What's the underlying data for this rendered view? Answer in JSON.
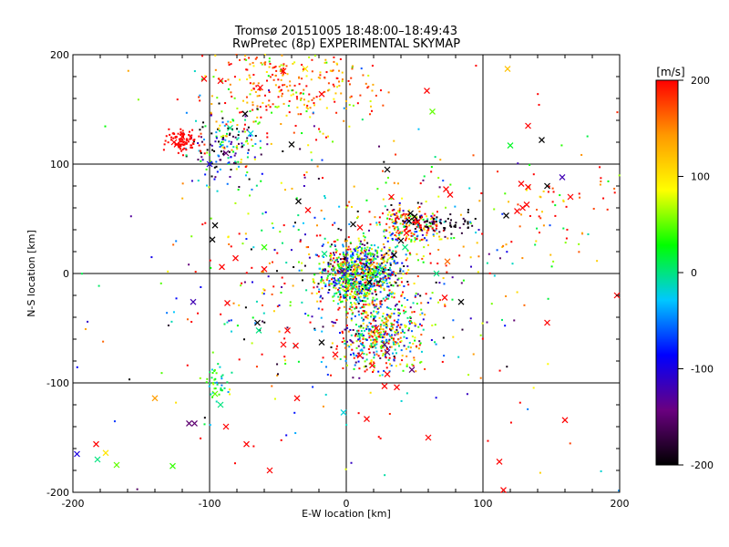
{
  "chart_data": {
    "type": "scatter",
    "title_lines": [
      "Tromsø 20151005 18:48:00–18:49:43",
      "RwPretec (8p) EXPERIMENTAL SKYMAP"
    ],
    "xlabel": "E-W location [km]",
    "ylabel": "N-S location [km]",
    "xlim": [
      -200,
      200
    ],
    "ylim": [
      -200,
      200
    ],
    "xticks": [
      -200,
      -100,
      0,
      100,
      200
    ],
    "yticks": [
      -200,
      -100,
      0,
      100,
      200
    ],
    "grid": true,
    "colorbar": {
      "label": "[m/s]",
      "range": [
        -200,
        200
      ],
      "ticks": [
        200,
        100,
        0,
        -100,
        -200
      ],
      "colors": [
        "#000000",
        "#6a0080",
        "#0000ff",
        "#00c8ff",
        "#00ff00",
        "#ffff00",
        "#ff9900",
        "#ff0000"
      ]
    },
    "marker_legend": {
      "point": "dot",
      "cross": "x"
    },
    "cross_points": [
      {
        "x": -85,
        "y": 133,
        "v": 0
      },
      {
        "x": -100,
        "y": 100,
        "v": -100
      },
      {
        "x": -88,
        "y": 110,
        "v": -150
      },
      {
        "x": -74,
        "y": 146,
        "v": -200
      },
      {
        "x": -70,
        "y": 128,
        "v": -20
      },
      {
        "x": -40,
        "y": 118,
        "v": -200
      },
      {
        "x": -63,
        "y": 170,
        "v": 200
      },
      {
        "x": -46,
        "y": 185,
        "v": 200
      },
      {
        "x": -92,
        "y": 176,
        "v": 200
      },
      {
        "x": -104,
        "y": 178,
        "v": 200
      },
      {
        "x": -30,
        "y": 187,
        "v": 100
      },
      {
        "x": -18,
        "y": 164,
        "v": 200
      },
      {
        "x": 59,
        "y": 167,
        "v": 200
      },
      {
        "x": 63,
        "y": 148,
        "v": 50
      },
      {
        "x": 133,
        "y": 135,
        "v": 200
      },
      {
        "x": 120,
        "y": 117,
        "v": 20
      },
      {
        "x": 143,
        "y": 122,
        "v": -200
      },
      {
        "x": 158,
        "y": 88,
        "v": -120
      },
      {
        "x": 128,
        "y": 82,
        "v": 200
      },
      {
        "x": 133,
        "y": 79,
        "v": 200
      },
      {
        "x": 147,
        "y": 80,
        "v": -200
      },
      {
        "x": 164,
        "y": 70,
        "v": 200
      },
      {
        "x": 117,
        "y": 53,
        "v": -200
      },
      {
        "x": 125,
        "y": 57,
        "v": 200
      },
      {
        "x": 129,
        "y": 60,
        "v": 200
      },
      {
        "x": 132,
        "y": 63,
        "v": 200
      },
      {
        "x": 76,
        "y": 72,
        "v": 200
      },
      {
        "x": 73,
        "y": 77,
        "v": 200
      },
      {
        "x": 30,
        "y": 95,
        "v": -200
      },
      {
        "x": 33,
        "y": 70,
        "v": 200
      },
      {
        "x": -35,
        "y": 66,
        "v": -200
      },
      {
        "x": -28,
        "y": 58,
        "v": 200
      },
      {
        "x": -96,
        "y": 44,
        "v": -200
      },
      {
        "x": -98,
        "y": 31,
        "v": -200
      },
      {
        "x": -60,
        "y": 24,
        "v": 40
      },
      {
        "x": -81,
        "y": 14,
        "v": 200
      },
      {
        "x": -91,
        "y": 6,
        "v": 200
      },
      {
        "x": -60,
        "y": 4,
        "v": 200
      },
      {
        "x": -16,
        "y": 18,
        "v": 0
      },
      {
        "x": 5,
        "y": 45,
        "v": -200
      },
      {
        "x": 10,
        "y": 42,
        "v": 200
      },
      {
        "x": 40,
        "y": 30,
        "v": -200
      },
      {
        "x": 44,
        "y": 37,
        "v": 200
      },
      {
        "x": 50,
        "y": 52,
        "v": -200
      },
      {
        "x": 47,
        "y": 55,
        "v": -200
      },
      {
        "x": 46,
        "y": 48,
        "v": -200
      },
      {
        "x": 52,
        "y": 47,
        "v": 200
      },
      {
        "x": 74,
        "y": 11,
        "v": 160
      },
      {
        "x": 66,
        "y": 0,
        "v": 0
      },
      {
        "x": 72,
        "y": -22,
        "v": 200
      },
      {
        "x": 84,
        "y": -26,
        "v": -200
      },
      {
        "x": -112,
        "y": -26,
        "v": -120
      },
      {
        "x": -87,
        "y": -27,
        "v": 200
      },
      {
        "x": -65,
        "y": -45,
        "v": -200
      },
      {
        "x": -64,
        "y": -52,
        "v": 0
      },
      {
        "x": -43,
        "y": -52,
        "v": 200
      },
      {
        "x": -46,
        "y": -65,
        "v": 200
      },
      {
        "x": -37,
        "y": -66,
        "v": 200
      },
      {
        "x": -18,
        "y": -63,
        "v": -200
      },
      {
        "x": -8,
        "y": -74,
        "v": 200
      },
      {
        "x": 10,
        "y": -75,
        "v": 200
      },
      {
        "x": 19,
        "y": -84,
        "v": 200
      },
      {
        "x": 30,
        "y": -92,
        "v": 200
      },
      {
        "x": 48,
        "y": -88,
        "v": -150
      },
      {
        "x": 28,
        "y": -103,
        "v": 200
      },
      {
        "x": 37,
        "y": -104,
        "v": 200
      },
      {
        "x": -2,
        "y": -127,
        "v": -20
      },
      {
        "x": 15,
        "y": -133,
        "v": 200
      },
      {
        "x": 60,
        "y": -150,
        "v": 200
      },
      {
        "x": -36,
        "y": -114,
        "v": 200
      },
      {
        "x": -96,
        "y": -110,
        "v": 50
      },
      {
        "x": -92,
        "y": -120,
        "v": 0
      },
      {
        "x": -140,
        "y": -114,
        "v": 140
      },
      {
        "x": -115,
        "y": -137,
        "v": -150
      },
      {
        "x": -111,
        "y": -137,
        "v": -150
      },
      {
        "x": -197,
        "y": -165,
        "v": -100
      },
      {
        "x": -182,
        "y": -170,
        "v": 0
      },
      {
        "x": -183,
        "y": -156,
        "v": 200
      },
      {
        "x": -176,
        "y": -164,
        "v": 100
      },
      {
        "x": -168,
        "y": -175,
        "v": 50
      },
      {
        "x": -127,
        "y": -176,
        "v": 40
      },
      {
        "x": -88,
        "y": -140,
        "v": 200
      },
      {
        "x": -73,
        "y": -156,
        "v": 200
      },
      {
        "x": -56,
        "y": -180,
        "v": 200
      },
      {
        "x": 147,
        "y": -45,
        "v": 200
      },
      {
        "x": 115,
        "y": -198,
        "v": 200
      },
      {
        "x": 160,
        "y": -134,
        "v": 200
      },
      {
        "x": 118,
        "y": 187,
        "v": 120
      },
      {
        "x": 198,
        "y": -20,
        "v": 200
      },
      {
        "x": 112,
        "y": -172,
        "v": 200
      },
      {
        "x": 30,
        "y": -72,
        "v": -150
      },
      {
        "x": 28,
        "y": -65,
        "v": -150
      },
      {
        "x": 22,
        "y": -50,
        "v": 200
      },
      {
        "x": 17,
        "y": -8,
        "v": -200
      },
      {
        "x": 5,
        "y": -12,
        "v": 0
      },
      {
        "x": -3,
        "y": 2,
        "v": -150
      },
      {
        "x": 35,
        "y": 17,
        "v": -200
      },
      {
        "x": 43,
        "y": 24,
        "v": 0
      },
      {
        "x": -124,
        "y": 118,
        "v": 200
      },
      {
        "x": -126,
        "y": 120,
        "v": 200
      },
      {
        "x": -120,
        "y": 125,
        "v": 200
      }
    ]
  }
}
